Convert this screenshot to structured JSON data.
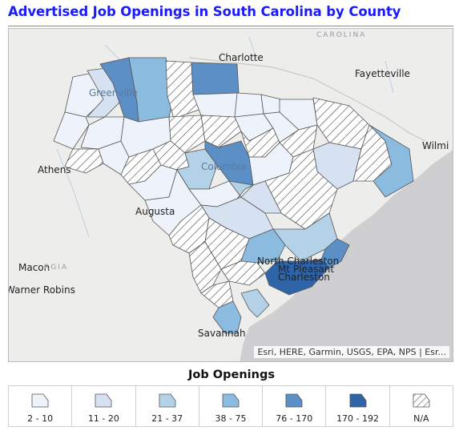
{
  "title": "Advertised Job Openings in South Carolina by County",
  "map": {
    "attribution": "Esri, HERE, Garmin, USGS, EPA, NPS | Esr...",
    "cities": {
      "charlotte": "Charlotte",
      "fayetteville": "Fayetteville",
      "greenville": "Greenville",
      "columbia": "Columbia",
      "athens": "Athens",
      "augusta": "Augusta",
      "macon": "Macon",
      "warner_robins": "Warner Robins",
      "north_charleston": "North Charleston",
      "mt_pleasant": "Mt Pleasant",
      "charleston": "Charleston",
      "savannah": "Savannah",
      "wilmington": "Wilmi"
    },
    "state_labels": {
      "carolina": "CAROLINA",
      "georgia": "RGIA"
    }
  },
  "legend": {
    "title": "Job Openings",
    "classes": [
      {
        "label": "2 - 10",
        "color": "#eef2fa"
      },
      {
        "label": "11 - 20",
        "color": "#d6e2f2"
      },
      {
        "label": "21 - 37",
        "color": "#b3d2e8"
      },
      {
        "label": "38 - 75",
        "color": "#8cbbe0"
      },
      {
        "label": "76 - 170",
        "color": "#5b8fc6"
      },
      {
        "label": "170 - 192",
        "color": "#2f64a8"
      },
      {
        "label": "N/A",
        "pattern": "hatch"
      }
    ]
  },
  "colors": {
    "land": "#ededeb",
    "ocean": "#cfcfd2",
    "water_lines": "#bcd0e0",
    "county_border": "#555555",
    "title": "#1a1aff"
  }
}
